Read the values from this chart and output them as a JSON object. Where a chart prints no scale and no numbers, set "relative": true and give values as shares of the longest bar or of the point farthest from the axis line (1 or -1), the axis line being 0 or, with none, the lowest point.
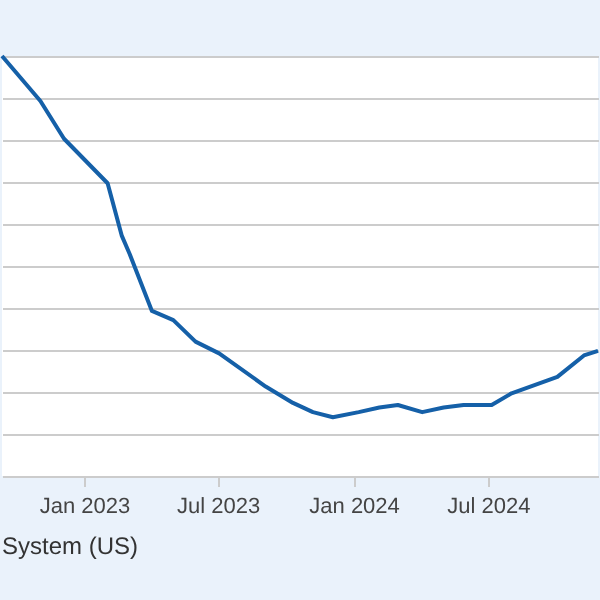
{
  "chart_data": {
    "type": "line",
    "relative": true,
    "grid": "y",
    "marker": "none",
    "line_style": "solid",
    "xlim": [
      "2022-09-12",
      "2024-11-27"
    ],
    "xticks": [
      {
        "value": "2023-01-01",
        "label": "Jan 2023"
      },
      {
        "value": "2023-07-01",
        "label": "Jul 2023"
      },
      {
        "value": "2024-01-01",
        "label": "Jan 2024"
      },
      {
        "value": "2024-07-01",
        "label": "Jul 2024"
      }
    ],
    "x": [
      "2022-09-12",
      "2022-11-03",
      "2022-12-05",
      "2023-02-02",
      "2023-02-21",
      "2023-03-04",
      "2023-04-03",
      "2023-05-02",
      "2023-06-01",
      "2023-07-03",
      "2023-09-04",
      "2023-10-11",
      "2023-11-07",
      "2023-12-04",
      "2024-01-08",
      "2024-02-05",
      "2024-03-01",
      "2024-04-03",
      "2024-05-02",
      "2024-05-29",
      "2024-07-06",
      "2024-08-02",
      "2024-10-03",
      "2024-11-08",
      "2024-11-27"
    ],
    "series": [
      {
        "color": "#1560a8",
        "values": [
          1.0,
          0.893,
          0.803,
          0.697,
          0.573,
          0.528,
          0.393,
          0.371,
          0.32,
          0.292,
          0.213,
          0.174,
          0.152,
          0.14,
          0.152,
          0.163,
          0.169,
          0.152,
          0.163,
          0.169,
          0.169,
          0.197,
          0.236,
          0.287,
          0.298
        ]
      }
    ],
    "annotations": [
      "System (US)"
    ]
  }
}
